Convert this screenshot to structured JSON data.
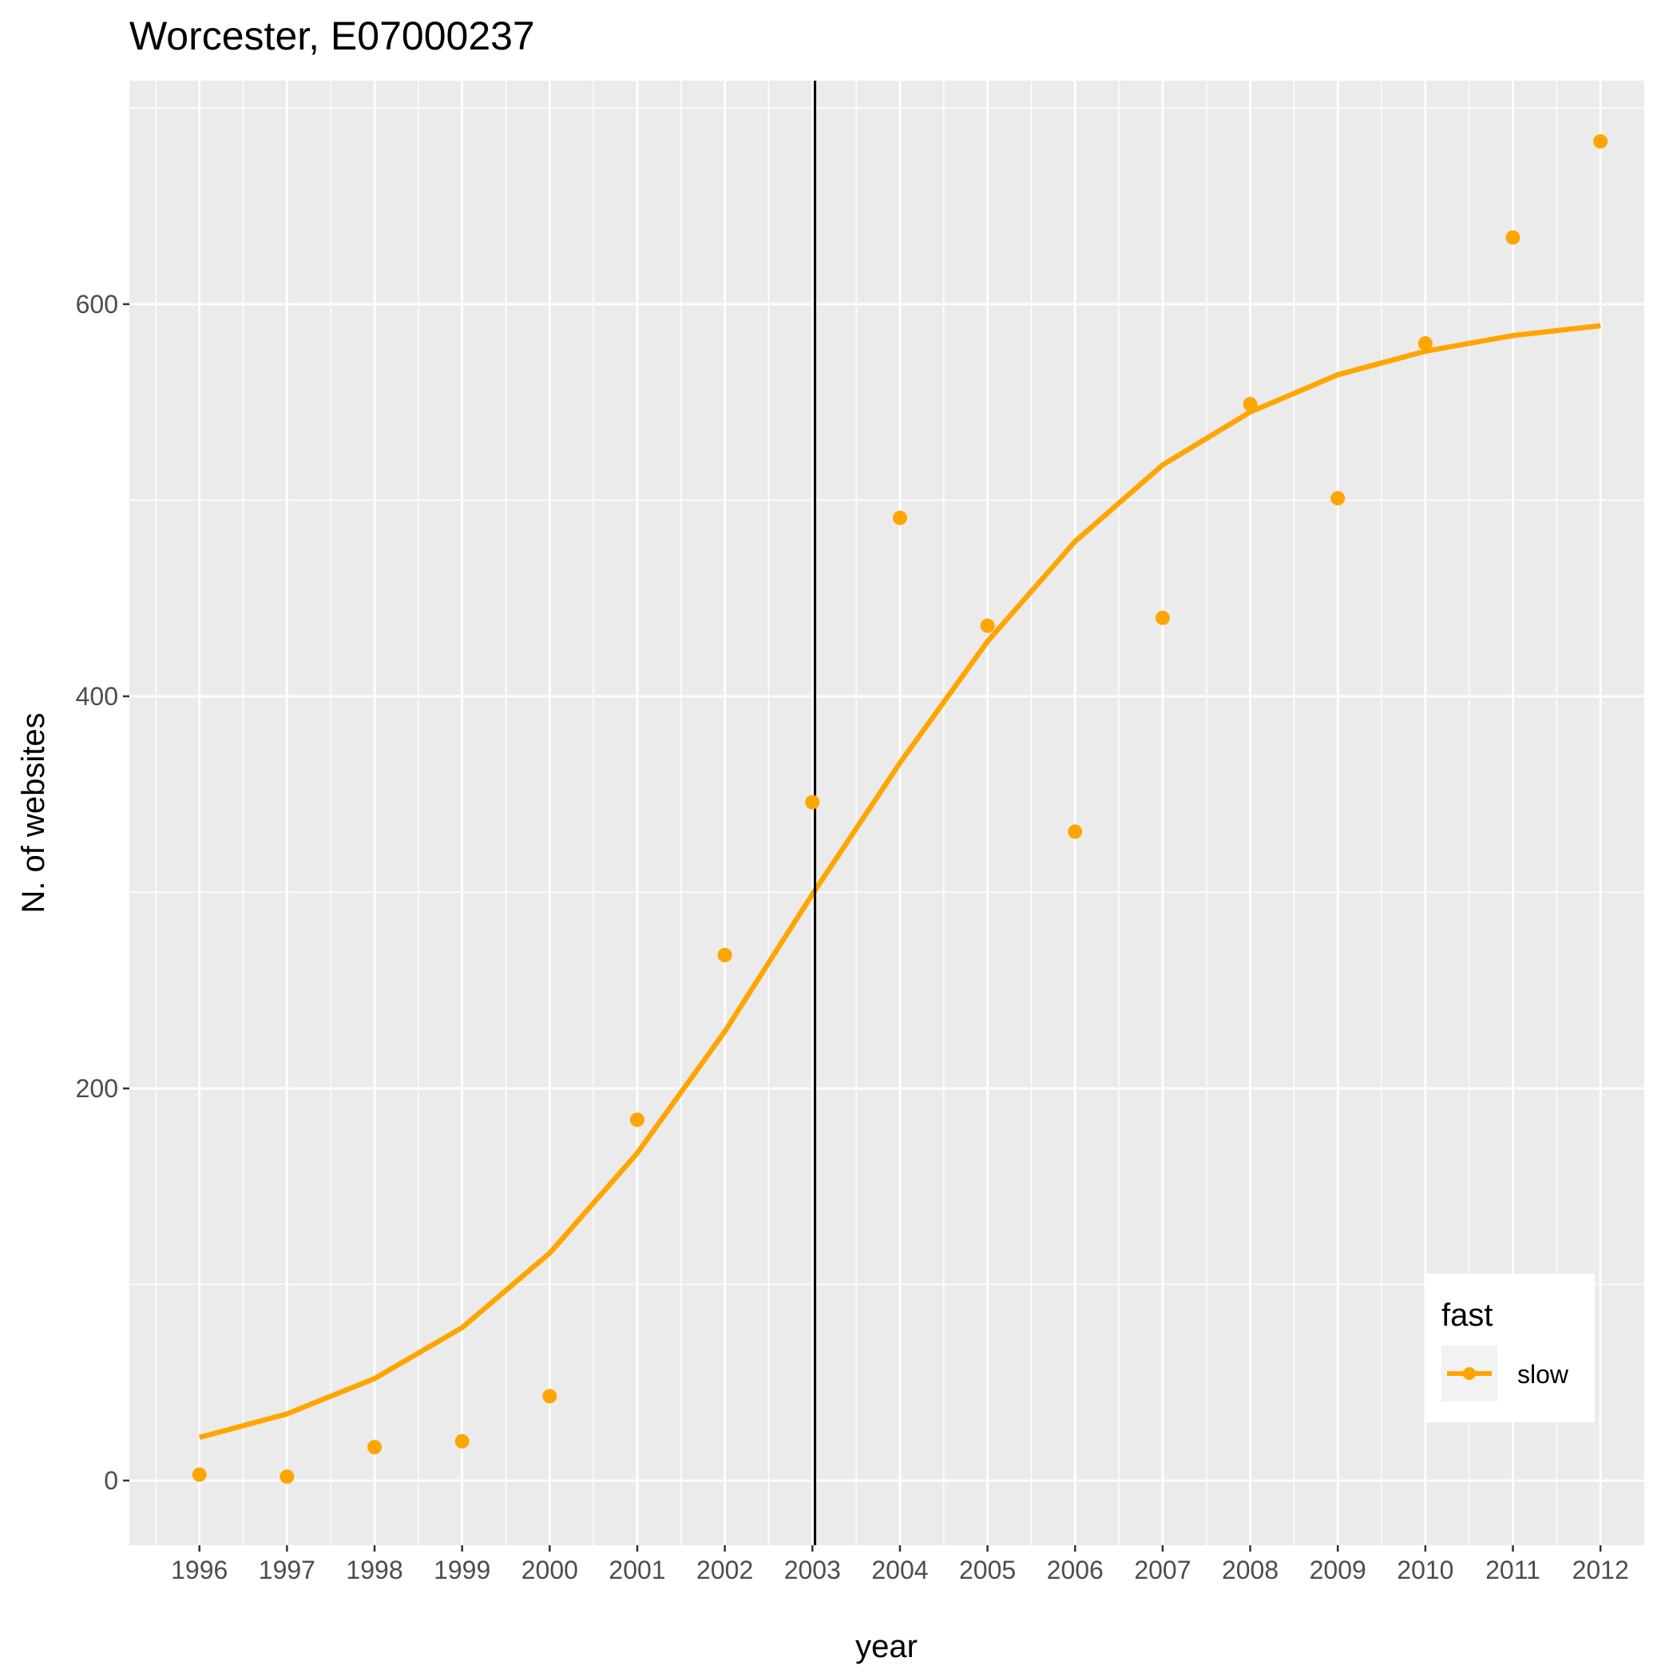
{
  "chart_data": {
    "type": "line",
    "title": "Worcester, E07000237",
    "xlabel": "year",
    "ylabel": "N. of websites",
    "x": [
      1996,
      1997,
      1998,
      1999,
      2000,
      2001,
      2002,
      2003,
      2004,
      2005,
      2006,
      2007,
      2008,
      2009,
      2010,
      2011,
      2012
    ],
    "x_ticks": [
      "1996",
      "1997",
      "1998",
      "1999",
      "2000",
      "2001",
      "2002",
      "2003",
      "2004",
      "2005",
      "2006",
      "2007",
      "2008",
      "2009",
      "2010",
      "2011",
      "2012"
    ],
    "y_ticks": [
      "0",
      "200",
      "400",
      "600"
    ],
    "xlim": [
      1995.2,
      2012.5
    ],
    "ylim": [
      -33,
      714
    ],
    "grid": true,
    "vline_x": 2003.03,
    "points": [
      3,
      2,
      17,
      20,
      43,
      184,
      268,
      346,
      491,
      436,
      331,
      440,
      549,
      501,
      580,
      634,
      683
    ],
    "fitted_line": [
      22,
      34,
      52,
      78,
      116,
      167,
      229,
      299,
      366,
      428,
      479,
      518,
      545,
      564,
      576,
      584,
      589
    ],
    "series": [
      {
        "name": "slow",
        "color": "#FFA500"
      }
    ],
    "legend": {
      "title": "fast",
      "position": "bottom-right"
    }
  }
}
